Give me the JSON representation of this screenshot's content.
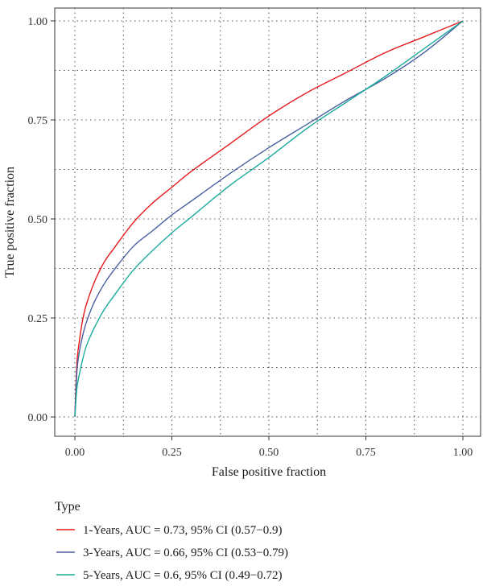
{
  "chart_data": {
    "type": "line",
    "title": "",
    "xlabel": "False positive fraction",
    "ylabel": "True positive fraction",
    "xlim": [
      0,
      1
    ],
    "ylim": [
      0,
      1
    ],
    "x_ticks": [
      "0.00",
      "0.25",
      "0.50",
      "0.75",
      "1.00"
    ],
    "y_ticks": [
      "0.00",
      "0.25",
      "0.50",
      "0.75",
      "1.00"
    ],
    "grid": true,
    "legend_position": "bottom",
    "legend_title": "Type",
    "series": [
      {
        "name": "1-Years, AUC = 0.73, 95% CI (0.57−0.9)",
        "color": "#e41a1c",
        "x": [
          0,
          0.005,
          0.01,
          0.02,
          0.03,
          0.05,
          0.075,
          0.1,
          0.15,
          0.2,
          0.25,
          0.3,
          0.4,
          0.5,
          0.6,
          0.7,
          0.8,
          0.9,
          1.0
        ],
        "y": [
          0,
          0.13,
          0.18,
          0.245,
          0.285,
          0.34,
          0.39,
          0.425,
          0.49,
          0.54,
          0.58,
          0.62,
          0.69,
          0.76,
          0.82,
          0.87,
          0.92,
          0.96,
          1.0
        ]
      },
      {
        "name": "3-Years, AUC = 0.66, 95% CI (0.53−0.79)",
        "color": "#4a5fa0",
        "x": [
          0,
          0.005,
          0.01,
          0.02,
          0.03,
          0.05,
          0.075,
          0.1,
          0.15,
          0.2,
          0.25,
          0.3,
          0.4,
          0.5,
          0.6,
          0.7,
          0.8,
          0.9,
          1.0
        ],
        "y": [
          0,
          0.11,
          0.155,
          0.205,
          0.24,
          0.29,
          0.335,
          0.37,
          0.43,
          0.47,
          0.51,
          0.545,
          0.615,
          0.68,
          0.74,
          0.8,
          0.855,
          0.92,
          1.0
        ]
      },
      {
        "name": "5-Years, AUC = 0.6, 95% CI (0.49−0.72)",
        "color": "#1aab9b",
        "x": [
          0,
          0.005,
          0.01,
          0.02,
          0.03,
          0.05,
          0.075,
          0.1,
          0.15,
          0.2,
          0.25,
          0.3,
          0.4,
          0.5,
          0.6,
          0.7,
          0.8,
          0.9,
          1.0
        ],
        "y": [
          0,
          0.07,
          0.1,
          0.145,
          0.18,
          0.225,
          0.27,
          0.305,
          0.37,
          0.42,
          0.465,
          0.505,
          0.585,
          0.655,
          0.73,
          0.795,
          0.86,
          0.93,
          1.0
        ]
      }
    ]
  }
}
